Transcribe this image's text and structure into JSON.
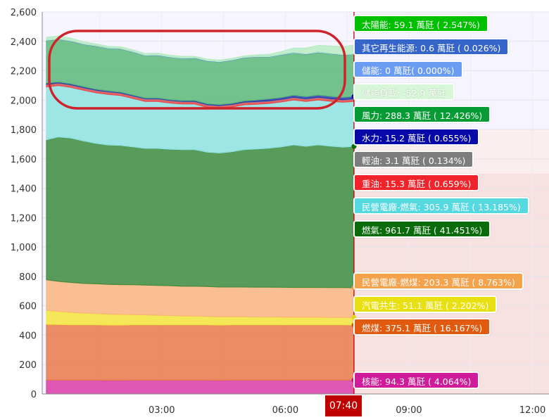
{
  "chart_data": {
    "type": "area",
    "stacked": true,
    "title": "",
    "xlabel": "",
    "ylabel": "",
    "ylim": [
      0,
      2600
    ],
    "yticks": [
      "0",
      "200",
      "400",
      "600",
      "800",
      "1,000",
      "1,200",
      "1,400",
      "1,600",
      "1,800",
      "2,000",
      "2,200",
      "2,400",
      "2,600"
    ],
    "xticks": [
      "03:00",
      "06:00",
      "09:00",
      "12:00"
    ],
    "x_hours": [
      0.2,
      0.5,
      0.8,
      1.1,
      1.4,
      1.7,
      2.0,
      2.3,
      2.6,
      2.9,
      3.2,
      3.5,
      3.8,
      4.1,
      4.4,
      4.7,
      5.0,
      5.3,
      5.6,
      5.9,
      6.2,
      6.5,
      6.8,
      7.1,
      7.4,
      7.667
    ],
    "x_range_hours": [
      0.1,
      12.4
    ],
    "current_time_label": "07:40",
    "current_time_hours": 7.667,
    "stack_order": [
      "核能",
      "燃煤",
      "汽電共生",
      "民營電廠-燃煤",
      "燃氣",
      "民營電廠-燃氣",
      "重油",
      "輕油",
      "水力",
      "風力",
      "儲能",
      "其它再生能源",
      "太陽能"
    ],
    "series": [
      {
        "name": "核能",
        "color": "#d83ba6",
        "values": [
          94,
          94,
          94,
          94,
          94,
          93,
          93,
          94,
          94,
          94,
          94,
          94,
          94,
          94,
          93,
          94,
          94,
          94,
          94,
          94,
          94,
          94,
          94,
          94,
          94,
          94
        ]
      },
      {
        "name": "燃煤",
        "color": "#e8794a",
        "values": [
          380,
          378,
          376,
          376,
          376,
          376,
          376,
          376,
          376,
          376,
          376,
          376,
          376,
          376,
          376,
          376,
          376,
          376,
          376,
          376,
          376,
          376,
          376,
          376,
          376,
          375
        ]
      },
      {
        "name": "汽電共生",
        "color": "#f5e53b",
        "values": [
          95,
          90,
          85,
          80,
          78,
          74,
          72,
          70,
          68,
          66,
          64,
          60,
          60,
          58,
          56,
          55,
          55,
          54,
          54,
          53,
          52,
          52,
          52,
          51,
          51,
          51
        ]
      },
      {
        "name": "民營電廠-燃煤",
        "color": "#f9b47e",
        "values": [
          208,
          204,
          204,
          202,
          202,
          203,
          203,
          203,
          203,
          203,
          203,
          203,
          203,
          203,
          203,
          203,
          203,
          203,
          203,
          203,
          203,
          203,
          203,
          203,
          203,
          203
        ]
      },
      {
        "name": "燃氣",
        "color": "#3d8b3d",
        "values": [
          953,
          983,
          982,
          970,
          955,
          948,
          947,
          938,
          930,
          932,
          928,
          930,
          930,
          915,
          912,
          920,
          935,
          940,
          945,
          955,
          970,
          960,
          970,
          962,
          955,
          962
        ]
      },
      {
        "name": "民營電廠-燃氣",
        "color": "#8ee3e0",
        "values": [
          360,
          350,
          345,
          345,
          345,
          345,
          340,
          330,
          320,
          320,
          315,
          310,
          310,
          305,
          305,
          305,
          305,
          305,
          305,
          306,
          306,
          306,
          306,
          306,
          306,
          306
        ]
      },
      {
        "name": "重油",
        "color": "#e8474b",
        "values": [
          15,
          15,
          15,
          15,
          15,
          15,
          15,
          15,
          15,
          15,
          15,
          15,
          15,
          15,
          15,
          15,
          15,
          15,
          15,
          15,
          15,
          15,
          15,
          15,
          15,
          15
        ]
      },
      {
        "name": "輕油",
        "color": "#8f8f8f",
        "values": [
          3,
          3,
          3,
          3,
          3,
          3,
          3,
          3,
          3,
          3,
          3,
          3,
          3,
          3,
          3,
          3,
          3,
          3,
          3,
          3,
          3,
          3,
          3,
          3,
          3,
          3
        ]
      },
      {
        "name": "水力",
        "color": "#2a3ab3",
        "values": [
          8,
          6,
          6,
          6,
          6,
          6,
          5,
          5,
          5,
          5,
          5,
          5,
          6,
          6,
          6,
          6,
          8,
          10,
          12,
          12,
          14,
          14,
          15,
          15,
          15,
          15
        ]
      },
      {
        "name": "風力",
        "color": "#5cb87a",
        "values": [
          290,
          292,
          292,
          290,
          295,
          290,
          295,
          295,
          290,
          292,
          290,
          288,
          290,
          292,
          292,
          295,
          295,
          295,
          288,
          292,
          290,
          290,
          292,
          292,
          290,
          288
        ]
      },
      {
        "name": "儲能",
        "color": "#7aa9f0",
        "values": [
          0,
          0,
          0,
          0,
          0,
          0,
          0,
          0,
          0,
          0,
          0,
          0,
          0,
          0,
          0,
          0,
          0,
          0,
          0,
          0,
          0,
          0,
          0,
          0,
          0,
          0
        ]
      },
      {
        "name": "其它再生能源",
        "color": "#3b6fc4",
        "values": [
          0.6,
          0.6,
          0.6,
          0.6,
          0.6,
          0.6,
          0.6,
          0.6,
          0.6,
          0.6,
          0.6,
          0.6,
          0.6,
          0.6,
          0.6,
          0.6,
          0.6,
          0.6,
          0.6,
          0.6,
          0.6,
          0.6,
          0.6,
          0.6,
          0.6,
          0.6
        ]
      },
      {
        "name": "太陽能",
        "color": "#b9ecc5",
        "values": [
          20,
          20,
          18,
          15,
          12,
          12,
          12,
          12,
          12,
          12,
          12,
          12,
          10,
          10,
          10,
          10,
          10,
          12,
          15,
          20,
          30,
          40,
          45,
          50,
          55,
          59
        ]
      }
    ],
    "legend": [
      {
        "text": "太陽能: 59.1 萬瓩 ( 2.547%)",
        "bg": "#00c000",
        "fg": "#ffffff"
      },
      {
        "text": "其它再生能源: 0.6 萬瓩 ( 0.026%)",
        "bg": "#3565c8",
        "fg": "#ffffff"
      },
      {
        "text": "儲能: 0 萬瓩( 0.000%)",
        "bg": "#6a9cf2",
        "fg": "#ffffff"
      },
      {
        "text": "儲能負載: -52.9 萬瓩",
        "bg": "#d8f7d8",
        "fg": "#ffffff"
      },
      {
        "text": "風力: 288.3 萬瓩 ( 12.426%)",
        "bg": "#079b35",
        "fg": "#ffffff"
      },
      {
        "text": "水力: 15.2 萬瓩 ( 0.655%)",
        "bg": "#0708a8",
        "fg": "#ffffff"
      },
      {
        "text": "輕油: 3.1 萬瓩 ( 0.134%)",
        "bg": "#7d7d7d",
        "fg": "#ffffff"
      },
      {
        "text": "重油: 15.3 萬瓩 ( 0.659%)",
        "bg": "#f0242a",
        "fg": "#ffffff"
      },
      {
        "text": "民營電廠-燃氣: 305.9 萬瓩 ( 13.185%)",
        "bg": "#55d8e0",
        "fg": "#ffffff"
      },
      {
        "text": "燃氣: 961.7 萬瓩 ( 41.451%)",
        "bg": "#0a6b0a",
        "fg": "#ffffff"
      },
      {
        "text": "民營電廠-燃煤: 203.3 萬瓩 ( 8.763%)",
        "bg": "#f4a24c",
        "fg": "#ffffff"
      },
      {
        "text": "汽電共生: 51.1 萬瓩 ( 2.202%)",
        "bg": "#e8e012",
        "fg": "#ffffff"
      },
      {
        "text": "燃煤: 375.1 萬瓩 ( 16.167%)",
        "bg": "#e05b10",
        "fg": "#ffffff"
      },
      {
        "text": "核能: 94.3 萬瓩 ( 4.064%)",
        "bg": "#d01c9a",
        "fg": "#ffffff"
      }
    ],
    "annotation": "red rounded rectangle highlighting the top of the stack (儲能 / 太陽能 / 風力 / 水力 bands)"
  }
}
